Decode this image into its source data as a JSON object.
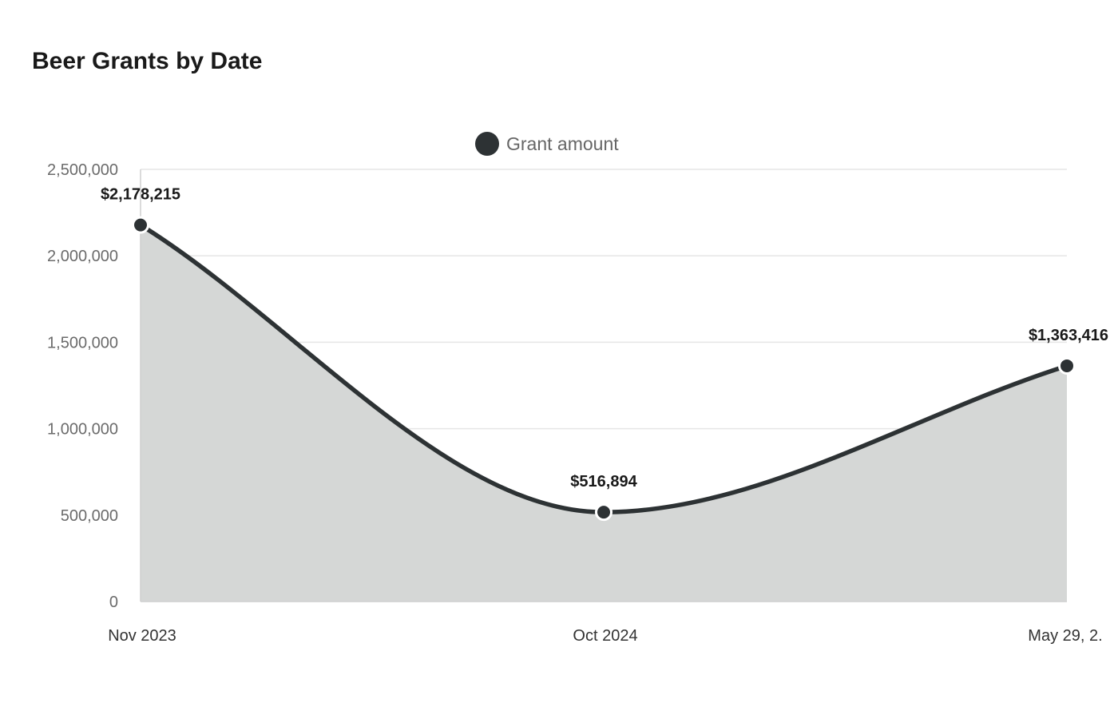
{
  "chart_data": {
    "type": "area",
    "title": "Beer Grants by Date",
    "x_tick_labels": [
      "Nov 2023",
      "Oct 2024",
      "May 29, 2."
    ],
    "series": [
      {
        "name": "Grant amount",
        "values": [
          2178215,
          516894,
          1363416
        ],
        "value_labels": [
          "$2,178,215",
          "$516,894",
          "$1,363,416"
        ]
      }
    ],
    "ylim": [
      0,
      2500000
    ],
    "y_ticks": [
      0,
      500000,
      1000000,
      1500000,
      2000000,
      2500000
    ],
    "y_tick_labels": [
      "0",
      "500,000",
      "1,000,000",
      "1,500,000",
      "2,000,000",
      "2,500,000"
    ],
    "grid": true,
    "legend_position": "top-center",
    "line_color": "#2d3234",
    "fill_color": "#d5d7d6"
  }
}
